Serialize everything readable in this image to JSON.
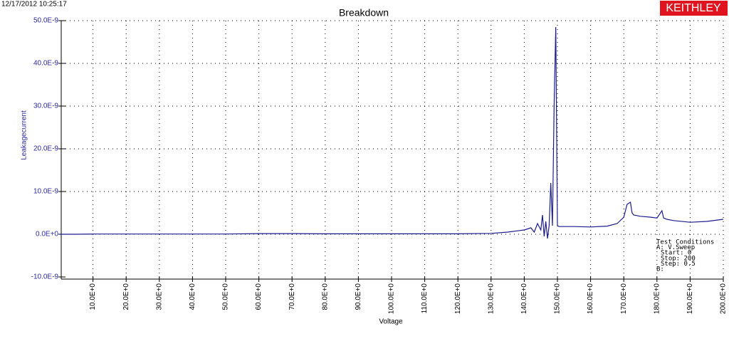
{
  "chart_data": {
    "type": "line",
    "title": "Breakdown",
    "timestamp": "12/17/2012 10:25:17",
    "logo": "KEITHLEY",
    "x_label": "Voltage",
    "y_label": "Leakagecurrent",
    "annotations": [
      "Test Conditions",
      "A: V.Sweep",
      "Start: 0",
      "Stop: 200",
      "Step: 0.5",
      "B:"
    ],
    "grid": true,
    "xlim": [
      0,
      200
    ],
    "ylim": [
      -1e-08,
      5e-08
    ],
    "xticks": [
      {
        "value": 10,
        "label": "10.0E+0"
      },
      {
        "value": 20,
        "label": "20.0E+0"
      },
      {
        "value": 30,
        "label": "30.0E+0"
      },
      {
        "value": 40,
        "label": "40.0E+0"
      },
      {
        "value": 50,
        "label": "50.0E+0"
      },
      {
        "value": 60,
        "label": "60.0E+0"
      },
      {
        "value": 70,
        "label": "70.0E+0"
      },
      {
        "value": 80,
        "label": "80.0E+0"
      },
      {
        "value": 90,
        "label": "90.0E+0"
      },
      {
        "value": 100,
        "label": "100.0E+0"
      },
      {
        "value": 110,
        "label": "110.0E+0"
      },
      {
        "value": 120,
        "label": "120.0E+0"
      },
      {
        "value": 130,
        "label": "130.0E+0"
      },
      {
        "value": 140,
        "label": "140.0E+0"
      },
      {
        "value": 150,
        "label": "150.0E+0"
      },
      {
        "value": 160,
        "label": "160.0E+0"
      },
      {
        "value": 170,
        "label": "170.0E+0"
      },
      {
        "value": 180,
        "label": "180.0E+0"
      },
      {
        "value": 190,
        "label": "190.0E+0"
      },
      {
        "value": 200,
        "label": "200.0E+0"
      }
    ],
    "yticks": [
      {
        "value": -1e-08,
        "label": "-10.0E-9"
      },
      {
        "value": 0,
        "label": "0.0E+0"
      },
      {
        "value": 1e-08,
        "label": "10.0E-9"
      },
      {
        "value": 2e-08,
        "label": "20.0E-9"
      },
      {
        "value": 3e-08,
        "label": "30.0E-9"
      },
      {
        "value": 4e-08,
        "label": "40.0E-9"
      },
      {
        "value": 5e-08,
        "label": "50.0E-9"
      }
    ],
    "x": [
      0,
      5,
      10,
      20,
      30,
      40,
      50,
      60,
      70,
      80,
      90,
      100,
      110,
      120,
      130,
      135,
      138,
      140,
      142,
      143,
      144,
      145,
      145.5,
      146,
      146.5,
      147,
      147.5,
      148,
      148.5,
      149,
      149.5,
      150,
      150.5,
      155,
      160,
      165,
      168,
      170,
      171,
      172,
      172.5,
      173,
      175,
      178,
      180,
      181.5,
      182,
      183,
      185,
      190,
      195,
      200
    ],
    "series": [
      {
        "color": "#1c1c8c",
        "values": [
          0,
          0,
          5e-11,
          5e-11,
          5e-11,
          5e-11,
          5e-11,
          1.5e-10,
          1.5e-10,
          1e-10,
          1e-10,
          1e-10,
          1e-10,
          1e-10,
          2e-10,
          5e-10,
          8e-10,
          1e-09,
          1.5e-09,
          5e-10,
          2.5e-09,
          1e-09,
          4.5e-09,
          -5e-10,
          3e-09,
          -1e-09,
          2e-09,
          1.2e-08,
          2e-09,
          3e-08,
          4.85e-08,
          2e-09,
          1.8e-09,
          1.8e-09,
          1.7e-09,
          1.9e-09,
          2.5e-09,
          4e-09,
          7e-09,
          7.5e-09,
          5e-09,
          4.5e-09,
          4.2e-09,
          4e-09,
          3.8e-09,
          5.5e-09,
          3.8e-09,
          3.5e-09,
          3.2e-09,
          2.8e-09,
          3e-09,
          3.5e-09
        ]
      }
    ]
  }
}
